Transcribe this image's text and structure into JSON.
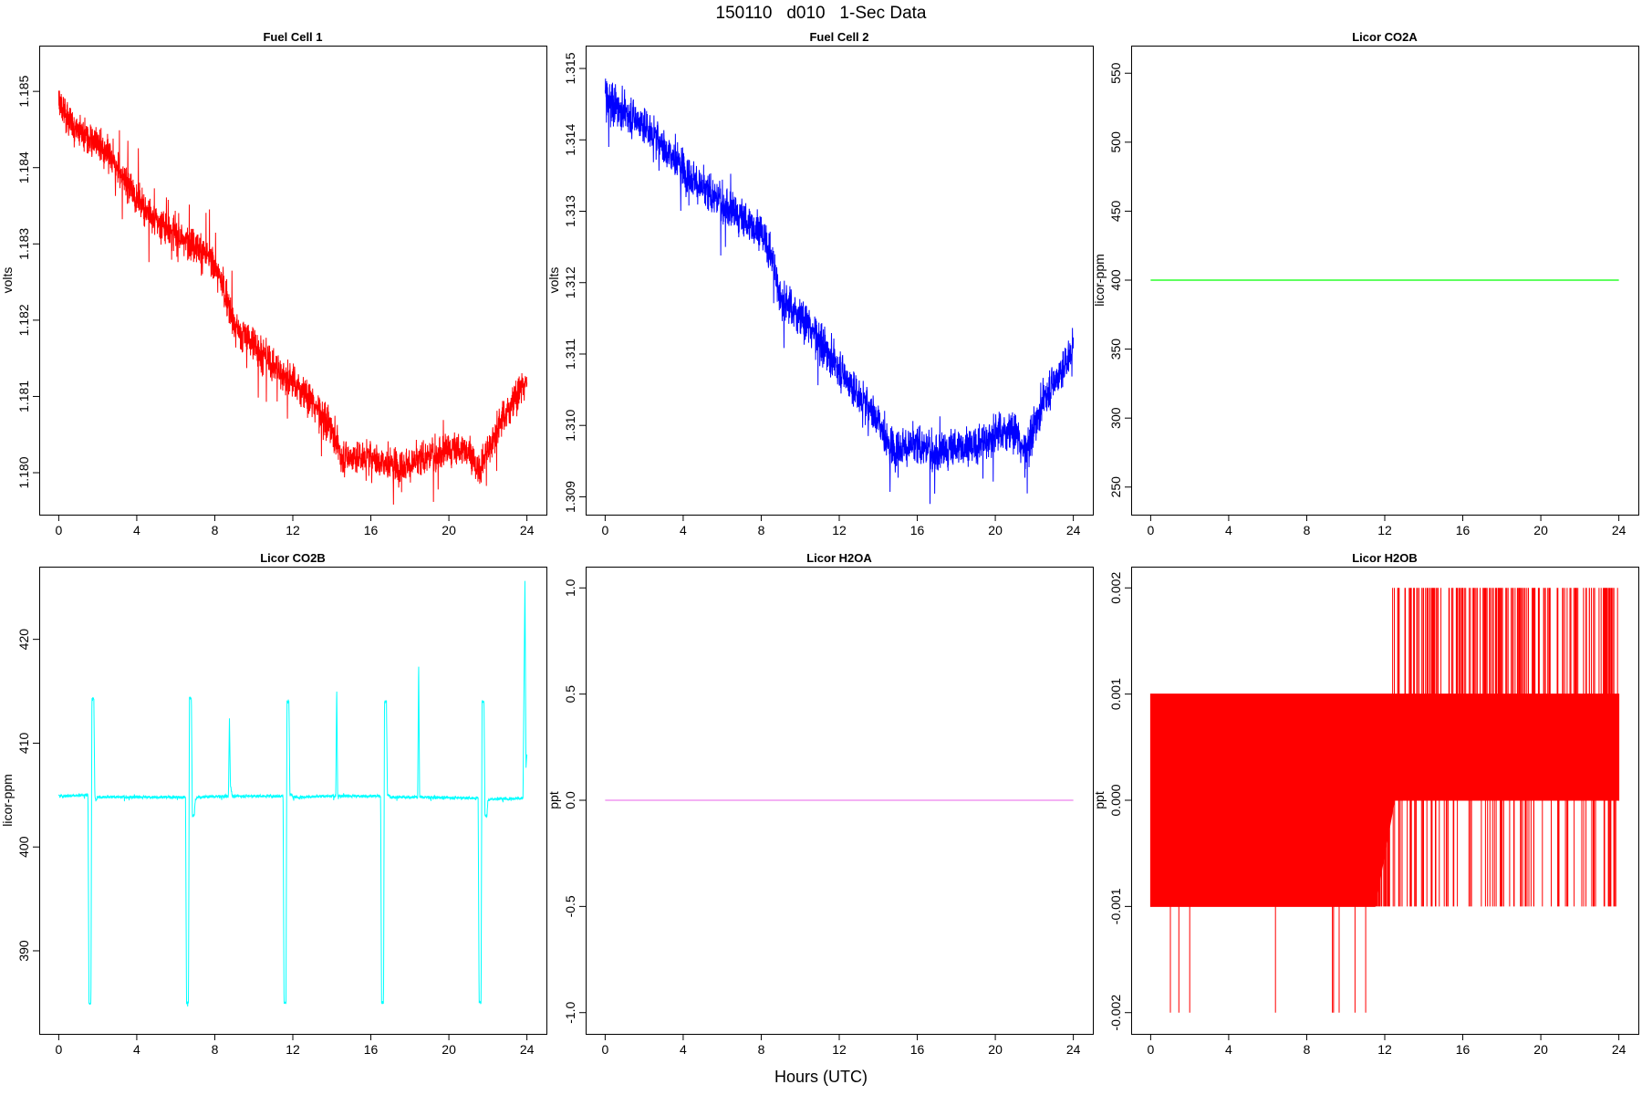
{
  "page": {
    "title": "150110   d010   1-Sec Data",
    "xlabel": "Hours (UTC)"
  },
  "chart_data": [
    {
      "type": "line",
      "title": "Fuel Cell 1",
      "ylabel": "volts",
      "color": "#ff0000",
      "xlim": [
        -1,
        25
      ],
      "ylim": [
        1.17945,
        1.1856
      ],
      "xticks": [
        0,
        4,
        8,
        12,
        16,
        20,
        24
      ],
      "yticks": [
        1.18,
        1.181,
        1.182,
        1.183,
        1.184,
        1.185
      ],
      "ytick_labels": [
        "1.180",
        "1.181",
        "1.182",
        "1.183",
        "1.184",
        "1.185"
      ],
      "series": [
        {
          "x": [
            0,
            0.5,
            1,
            2,
            3,
            4,
            5,
            6,
            7,
            8,
            8.5,
            9,
            10,
            11,
            12,
            13,
            14,
            14.5,
            16,
            17,
            18,
            19,
            20,
            21,
            21.5,
            22,
            22.5,
            23,
            23.5,
            24
          ],
          "values": [
            1.1849,
            1.1846,
            1.1845,
            1.1843,
            1.184,
            1.1836,
            1.1833,
            1.1831,
            1.183,
            1.1827,
            1.1824,
            1.1819,
            1.1817,
            1.1814,
            1.1812,
            1.1809,
            1.1806,
            1.1802,
            1.1802,
            1.1801,
            1.1801,
            1.1802,
            1.1803,
            1.1803,
            1.18,
            1.1803,
            1.1806,
            1.1808,
            1.181,
            1.1812
          ],
          "noise": 0.00023
        }
      ]
    },
    {
      "type": "line",
      "title": "Fuel Cell 2",
      "ylabel": "volts",
      "color": "#0000ff",
      "xlim": [
        -1,
        25
      ],
      "ylim": [
        1.30875,
        1.31532
      ],
      "xticks": [
        0,
        4,
        8,
        12,
        16,
        20,
        24
      ],
      "yticks": [
        1.309,
        1.31,
        1.311,
        1.312,
        1.313,
        1.314,
        1.315
      ],
      "ytick_labels": [
        "1.309",
        "1.310",
        "1.311",
        "1.312",
        "1.313",
        "1.314",
        "1.315"
      ],
      "series": [
        {
          "x": [
            0,
            1,
            2,
            3,
            4,
            5,
            6,
            7,
            8,
            8.5,
            9,
            10,
            11,
            12,
            13,
            14,
            14.5,
            16,
            17,
            18,
            19,
            20,
            21,
            21.5,
            22,
            22.5,
            23,
            23.5,
            24
          ],
          "values": [
            1.3146,
            1.3144,
            1.3142,
            1.3139,
            1.3136,
            1.3133,
            1.3131,
            1.3129,
            1.3127,
            1.3124,
            1.3118,
            1.3115,
            1.3112,
            1.3108,
            1.3104,
            1.3101,
            1.3097,
            1.3097,
            1.3096,
            1.3097,
            1.3097,
            1.3099,
            1.3099,
            1.3096,
            1.31,
            1.3104,
            1.3106,
            1.3108,
            1.3111
          ],
          "noise": 0.00028
        }
      ]
    },
    {
      "type": "line",
      "title": "Licor CO2A",
      "ylabel": "licor-ppm",
      "color": "#00ff00",
      "xlim": [
        -1,
        25
      ],
      "ylim": [
        230,
        570
      ],
      "xticks": [
        0,
        4,
        8,
        12,
        16,
        20,
        24
      ],
      "yticks": [
        250,
        300,
        350,
        400,
        450,
        500,
        550
      ],
      "ytick_labels": [
        "250",
        "300",
        "350",
        "400",
        "450",
        "500",
        "550"
      ],
      "series": [
        {
          "x": [
            0,
            24
          ],
          "values": [
            400,
            400
          ],
          "noise": 0
        }
      ]
    },
    {
      "type": "line",
      "title": "Licor CO2B",
      "ylabel": "licor-ppm",
      "color": "#00ffff",
      "xlim": [
        -1,
        25
      ],
      "ylim": [
        382,
        427
      ],
      "xticks": [
        0,
        4,
        8,
        12,
        16,
        20,
        24
      ],
      "yticks": [
        390,
        400,
        410,
        420
      ],
      "ytick_labels": [
        "390",
        "400",
        "410",
        "420"
      ],
      "series": [
        {
          "x": [
            0,
            1.5,
            1.55,
            1.65,
            1.7,
            1.75,
            1.8,
            1.85,
            1.9,
            2.0,
            6.5,
            6.55,
            6.65,
            6.7,
            6.8,
            6.85,
            6.95,
            7.0,
            7.1,
            8.7,
            8.75,
            8.8,
            8.9,
            11.5,
            11.55,
            11.65,
            11.7,
            11.8,
            11.85,
            11.95,
            12.0,
            14.2,
            14.25,
            14.3,
            16.5,
            16.55,
            16.65,
            16.7,
            16.8,
            16.85,
            16.95,
            17.0,
            18.4,
            18.45,
            18.5,
            21.5,
            21.55,
            21.65,
            21.7,
            21.8,
            21.85,
            21.95,
            22.0,
            22.1,
            23.8,
            23.9,
            23.95,
            24.0
          ],
          "values": [
            404.9,
            405.0,
            385.0,
            385.0,
            414.3,
            414.3,
            414.3,
            405.0,
            404.5,
            404.8,
            404.8,
            385.0,
            385.0,
            414.3,
            414.3,
            403.0,
            403.0,
            404.5,
            404.8,
            404.9,
            412.5,
            406.0,
            404.9,
            404.9,
            385.0,
            385.0,
            414.0,
            414.0,
            405.0,
            405.0,
            404.8,
            404.9,
            415.5,
            404.9,
            404.9,
            385.0,
            385.0,
            414.0,
            414.0,
            405.0,
            405.0,
            404.8,
            404.8,
            418.0,
            404.8,
            404.7,
            385.0,
            385.0,
            414.0,
            414.0,
            403.0,
            403.0,
            404.5,
            404.6,
            404.7,
            426.0,
            407.5,
            409.0
          ],
          "noise": 0.15
        }
      ]
    },
    {
      "type": "line",
      "title": "Licor H2OA",
      "ylabel": "ppt",
      "color": "#ee82ee",
      "xlim": [
        -1,
        25
      ],
      "ylim": [
        -1.1,
        1.1
      ],
      "xticks": [
        0,
        4,
        8,
        12,
        16,
        20,
        24
      ],
      "yticks": [
        -1.0,
        -0.5,
        0.0,
        0.5,
        1.0
      ],
      "ytick_labels": [
        "-1.0",
        "-0.5",
        "0.0",
        "0.5",
        "1.0"
      ],
      "series": [
        {
          "x": [
            0,
            24
          ],
          "values": [
            0,
            0
          ],
          "noise": 0
        }
      ]
    },
    {
      "type": "line",
      "title": "Licor H2OB",
      "ylabel": "ppt",
      "color": "#ff0000",
      "xlim": [
        -1,
        25
      ],
      "ylim": [
        -0.0022,
        0.0022
      ],
      "xticks": [
        0,
        4,
        8,
        12,
        16,
        20,
        24
      ],
      "yticks": [
        -0.002,
        -0.001,
        0.0,
        0.001,
        0.002
      ],
      "ytick_labels": [
        "-0.002",
        "-0.001",
        "0.000",
        "0.001",
        "0.002"
      ],
      "series": [
        {
          "x": [
            0,
            6,
            11.5,
            12.5,
            24
          ],
          "values": [
            -0.001,
            -0.001,
            -0.001,
            0,
            0
          ],
          "band_top": [
            0.001,
            0.001,
            0.001,
            0.001,
            0.001
          ],
          "discrete_levels": [
            -0.002,
            -0.001,
            0.0,
            0.001,
            0.002
          ],
          "noise": 0
        }
      ]
    }
  ]
}
